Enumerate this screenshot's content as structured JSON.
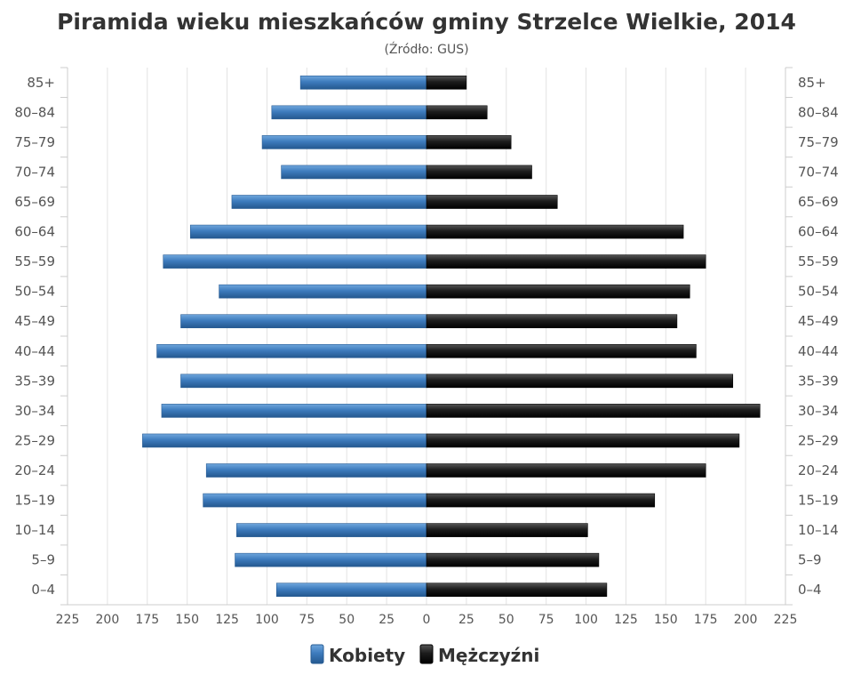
{
  "chart_data": {
    "type": "bar",
    "orientation": "population-pyramid",
    "title": "Piramida wieku mieszkańców gminy Strzelce Wielkie, 2014",
    "subtitle": "(Źródło: GUS)",
    "categories": [
      "0–4",
      "5–9",
      "10–14",
      "15–19",
      "20–24",
      "25–29",
      "30–34",
      "35–39",
      "40–44",
      "45–49",
      "50–54",
      "55–59",
      "60–64",
      "65–69",
      "70–74",
      "75–79",
      "80–84",
      "85+"
    ],
    "series": [
      {
        "name": "Kobiety",
        "color": "#3f7fc0",
        "side": "left",
        "values": [
          94,
          120,
          119,
          140,
          138,
          178,
          166,
          154,
          169,
          154,
          130,
          165,
          148,
          122,
          91,
          103,
          97,
          79
        ]
      },
      {
        "name": "Mężczyźni",
        "color": "#1a1a1a",
        "side": "right",
        "values": [
          113,
          108,
          101,
          143,
          175,
          196,
          209,
          192,
          169,
          157,
          165,
          175,
          161,
          82,
          66,
          53,
          38,
          25
        ]
      }
    ],
    "x_ticks": [
      "225",
      "200",
      "175",
      "150",
      "125",
      "100",
      "75",
      "50",
      "25",
      "0",
      "25",
      "50",
      "75",
      "100",
      "125",
      "150",
      "175",
      "200",
      "225"
    ],
    "xlim": [
      -225,
      225
    ],
    "grid": true,
    "legend_position": "bottom-center"
  }
}
